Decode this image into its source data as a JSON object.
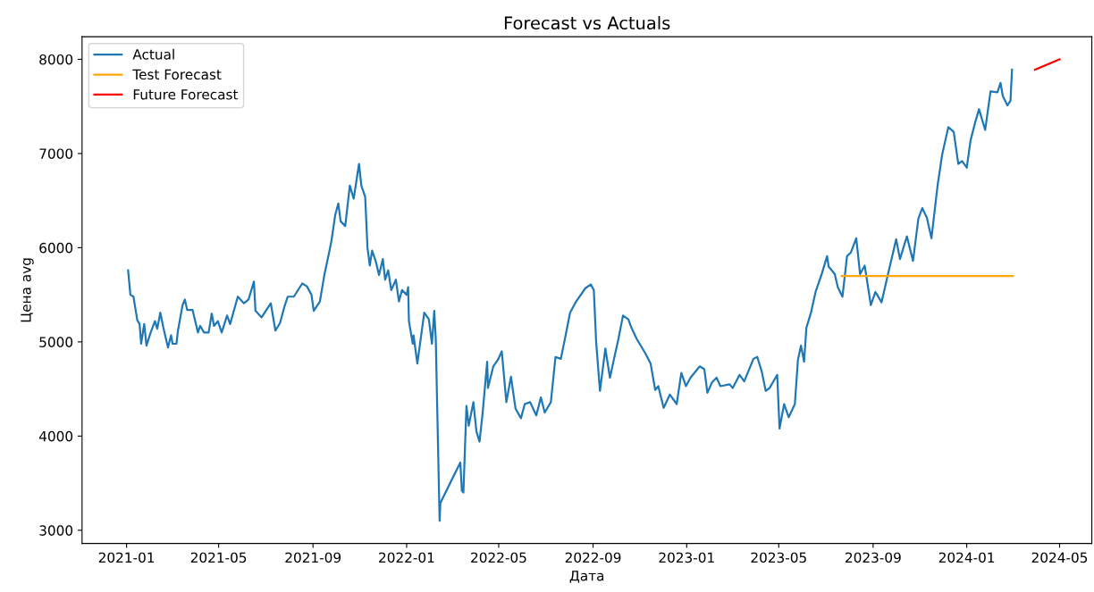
{
  "chart_data": {
    "type": "line",
    "title": "Forecast vs Actuals",
    "xlabel": "Дата",
    "ylabel": "Цена avg",
    "xlim": [
      "2020-11-04",
      "2024-06-12"
    ],
    "ylim": [
      2860,
      8240
    ],
    "xticks": [
      "2021-01",
      "2021-05",
      "2021-09",
      "2022-01",
      "2022-05",
      "2022-09",
      "2023-01",
      "2023-05",
      "2023-09",
      "2024-01",
      "2024-05"
    ],
    "yticks": [
      3000,
      4000,
      5000,
      6000,
      7000,
      8000
    ],
    "grid": false,
    "legend": "top left",
    "marker": "none",
    "line_style": "solid",
    "series": [
      {
        "name": "Actual",
        "color": "#1f77b4",
        "x": [
          "2021-01-03",
          "2021-01-06",
          "2021-01-10",
          "2021-01-15",
          "2021-01-18",
          "2021-01-20",
          "2021-01-24",
          "2021-01-27",
          "2021-02-01",
          "2021-02-07",
          "2021-02-10",
          "2021-02-14",
          "2021-02-18",
          "2021-02-24",
          "2021-02-28",
          "2021-03-02",
          "2021-03-07",
          "2021-03-09",
          "2021-03-15",
          "2021-03-18",
          "2021-03-21",
          "2021-03-28",
          "2021-04-04",
          "2021-04-07",
          "2021-04-12",
          "2021-04-18",
          "2021-04-22",
          "2021-04-25",
          "2021-04-30",
          "2021-05-05",
          "2021-05-12",
          "2021-05-16",
          "2021-05-26",
          "2021-06-03",
          "2021-06-09",
          "2021-06-16",
          "2021-06-18",
          "2021-06-26",
          "2021-07-08",
          "2021-07-14",
          "2021-07-20",
          "2021-07-26",
          "2021-07-30",
          "2021-08-07",
          "2021-08-18",
          "2021-08-24",
          "2021-08-30",
          "2021-09-02",
          "2021-09-10",
          "2021-09-16",
          "2021-09-22",
          "2021-09-25",
          "2021-09-30",
          "2021-10-04",
          "2021-10-07",
          "2021-10-13",
          "2021-10-19",
          "2021-10-24",
          "2021-10-31",
          "2021-11-03",
          "2021-11-08",
          "2021-11-11",
          "2021-11-14",
          "2021-11-17",
          "2021-11-22",
          "2021-11-26",
          "2021-12-01",
          "2021-12-04",
          "2021-12-08",
          "2021-12-12",
          "2021-12-18",
          "2021-12-22",
          "2021-12-26",
          "2022-01-01",
          "2022-01-03",
          "2022-01-04",
          "2022-01-09",
          "2022-01-10",
          "2022-01-15",
          "2022-01-24",
          "2022-01-30",
          "2022-02-03",
          "2022-02-06",
          "2022-02-08",
          "2022-02-13",
          "2022-02-14",
          "2022-03-12",
          "2022-03-14",
          "2022-03-16",
          "2022-03-20",
          "2022-03-23",
          "2022-03-29",
          "2022-04-02",
          "2022-04-06",
          "2022-04-10",
          "2022-04-16",
          "2022-04-17",
          "2022-04-24",
          "2022-04-30",
          "2022-05-05",
          "2022-05-11",
          "2022-05-17",
          "2022-05-23",
          "2022-05-30",
          "2022-06-04",
          "2022-06-11",
          "2022-06-19",
          "2022-06-25",
          "2022-06-30",
          "2022-07-08",
          "2022-07-14",
          "2022-07-21",
          "2022-07-27",
          "2022-08-02",
          "2022-08-10",
          "2022-08-22",
          "2022-08-29",
          "2022-09-02",
          "2022-09-05",
          "2022-09-10",
          "2022-09-17",
          "2022-09-23",
          "2022-09-28",
          "2022-10-04",
          "2022-10-10",
          "2022-10-17",
          "2022-10-21",
          "2022-10-28",
          "2022-11-08",
          "2022-11-15",
          "2022-11-21",
          "2022-11-25",
          "2022-12-02",
          "2022-12-10",
          "2022-12-19",
          "2022-12-25",
          "2022-12-31",
          "2023-01-06",
          "2023-01-18",
          "2023-01-24",
          "2023-01-28",
          "2023-02-03",
          "2023-02-09",
          "2023-02-14",
          "2023-02-26",
          "2023-03-02",
          "2023-03-11",
          "2023-03-17",
          "2023-03-29",
          "2023-04-03",
          "2023-04-09",
          "2023-04-14",
          "2023-04-19",
          "2023-04-29",
          "2023-05-02",
          "2023-05-08",
          "2023-05-14",
          "2023-05-22",
          "2023-05-26",
          "2023-05-30",
          "2023-06-03",
          "2023-06-06",
          "2023-06-12",
          "2023-06-18",
          "2023-06-26",
          "2023-07-03",
          "2023-07-05",
          "2023-07-13",
          "2023-07-17",
          "2023-07-23",
          "2023-07-29",
          "2023-08-03",
          "2023-08-10",
          "2023-08-15",
          "2023-08-21",
          "2023-08-29",
          "2023-09-04",
          "2023-09-12",
          "2023-09-19",
          "2023-10-01",
          "2023-10-06",
          "2023-10-15",
          "2023-10-23",
          "2023-10-30",
          "2023-11-04",
          "2023-11-10",
          "2023-11-16",
          "2023-11-24",
          "2023-11-30",
          "2023-12-08",
          "2023-12-15",
          "2023-12-21",
          "2023-12-26",
          "2024-01-01",
          "2024-01-06",
          "2024-01-12",
          "2024-01-17",
          "2024-01-25",
          "2024-02-01",
          "2024-02-10",
          "2024-02-14",
          "2024-02-17",
          "2024-02-23",
          "2024-02-27",
          "2024-02-29"
        ],
        "values": [
          5760,
          5500,
          5480,
          5230,
          5190,
          4980,
          5190,
          4960,
          5090,
          5220,
          5140,
          5310,
          5150,
          4940,
          5070,
          4980,
          4980,
          5120,
          5390,
          5450,
          5340,
          5340,
          5100,
          5170,
          5100,
          5100,
          5300,
          5170,
          5220,
          5100,
          5280,
          5190,
          5480,
          5410,
          5450,
          5640,
          5330,
          5260,
          5410,
          5120,
          5200,
          5380,
          5480,
          5480,
          5620,
          5590,
          5500,
          5330,
          5430,
          5720,
          5950,
          6070,
          6350,
          6470,
          6280,
          6230,
          6660,
          6520,
          6890,
          6660,
          6540,
          6000,
          5810,
          5970,
          5850,
          5710,
          5880,
          5660,
          5760,
          5550,
          5660,
          5430,
          5550,
          5500,
          5580,
          5220,
          4980,
          5070,
          4770,
          5310,
          5240,
          4980,
          5330,
          5030,
          3100,
          3290,
          3720,
          3420,
          3400,
          4320,
          4110,
          4360,
          4050,
          3940,
          4240,
          4790,
          4510,
          4740,
          4810,
          4900,
          4360,
          4630,
          4290,
          4190,
          4340,
          4360,
          4220,
          4410,
          4250,
          4360,
          4840,
          4820,
          5060,
          5310,
          5430,
          5570,
          5610,
          5550,
          5000,
          4480,
          4930,
          4620,
          4810,
          5030,
          5280,
          5240,
          5150,
          5030,
          4880,
          4770,
          4490,
          4530,
          4300,
          4440,
          4340,
          4670,
          4530,
          4620,
          4740,
          4710,
          4460,
          4570,
          4620,
          4530,
          4550,
          4510,
          4650,
          4580,
          4820,
          4840,
          4680,
          4480,
          4510,
          4650,
          4080,
          4340,
          4200,
          4340,
          4810,
          4960,
          4790,
          5150,
          5310,
          5530,
          5720,
          5910,
          5800,
          5720,
          5580,
          5480,
          5910,
          5950,
          6100,
          5720,
          5810,
          5390,
          5530,
          5420,
          5670,
          6090,
          5880,
          6120,
          5860,
          6310,
          6420,
          6320,
          6100,
          6660,
          6990,
          7280,
          7230,
          6890,
          6920,
          6850,
          7140,
          7330,
          7470,
          7250,
          7660,
          7650,
          7750,
          7610,
          7510,
          7560,
          7890
        ]
      },
      {
        "name": "Test Forecast",
        "color": "#ffa500",
        "x": [
          "2023-07-22",
          "2024-03-01"
        ],
        "values": [
          5700,
          5700
        ]
      },
      {
        "name": "Future Forecast",
        "color": "#ff0000",
        "x": [
          "2024-03-30",
          "2024-05-01"
        ],
        "values": [
          7890,
          8000
        ]
      }
    ]
  }
}
